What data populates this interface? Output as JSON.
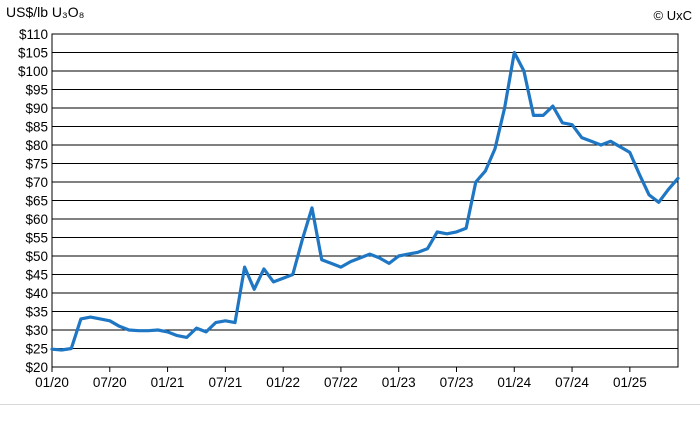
{
  "chart_data": {
    "type": "line",
    "ylabel": "US$/lb U₃O₈",
    "copyright": "© UxC",
    "ylim": [
      20,
      110
    ],
    "yticks": [
      20,
      25,
      30,
      35,
      40,
      45,
      50,
      55,
      60,
      65,
      70,
      75,
      80,
      85,
      90,
      95,
      100,
      105,
      110
    ],
    "ytick_labels": [
      "$20",
      "$25",
      "$30",
      "$35",
      "$40",
      "$45",
      "$50",
      "$55",
      "$60",
      "$65",
      "$70",
      "$75",
      "$80",
      "$85",
      "$90",
      "$95",
      "$100",
      "$105",
      "$110"
    ],
    "xlim": [
      "2020-01",
      "2025-06"
    ],
    "xticks": [
      "2020-01",
      "2020-07",
      "2021-01",
      "2021-07",
      "2022-01",
      "2022-07",
      "2023-01",
      "2023-07",
      "2024-01",
      "2024-07",
      "2025-01"
    ],
    "xtick_labels": [
      "01/20",
      "07/20",
      "01/21",
      "07/21",
      "01/22",
      "07/22",
      "01/23",
      "07/23",
      "01/24",
      "07/24",
      "01/25"
    ],
    "grid": true,
    "line_color": "#1f77c4",
    "series": [
      {
        "x": [
          "2020-01",
          "2020-02",
          "2020-03",
          "2020-04",
          "2020-05",
          "2020-06",
          "2020-07",
          "2020-08",
          "2020-09",
          "2020-10",
          "2020-11",
          "2020-12",
          "2021-01",
          "2021-02",
          "2021-03",
          "2021-04",
          "2021-05",
          "2021-06",
          "2021-07",
          "2021-08",
          "2021-09",
          "2021-10",
          "2021-11",
          "2021-12",
          "2022-01",
          "2022-02",
          "2022-03",
          "2022-04",
          "2022-05",
          "2022-06",
          "2022-07",
          "2022-08",
          "2022-09",
          "2022-10",
          "2022-11",
          "2022-12",
          "2023-01",
          "2023-02",
          "2023-03",
          "2023-04",
          "2023-05",
          "2023-06",
          "2023-07",
          "2023-08",
          "2023-09",
          "2023-10",
          "2023-11",
          "2023-12",
          "2024-01",
          "2024-02",
          "2024-03",
          "2024-04",
          "2024-05",
          "2024-06",
          "2024-07",
          "2024-08",
          "2024-09",
          "2024-10",
          "2024-11",
          "2024-12",
          "2025-01",
          "2025-02",
          "2025-03",
          "2025-04",
          "2025-05",
          "2025-06"
        ],
        "values": [
          24.8,
          24.6,
          25.0,
          33.0,
          33.5,
          33.0,
          32.5,
          31.0,
          30.0,
          29.8,
          29.8,
          30.0,
          29.5,
          28.5,
          28.0,
          30.5,
          29.5,
          32.0,
          32.5,
          32.0,
          47.0,
          41.0,
          46.5,
          43.0,
          44.0,
          45.0,
          54.5,
          63.0,
          49.0,
          48.0,
          47.0,
          48.5,
          49.5,
          50.5,
          49.5,
          48.0,
          50.0,
          50.5,
          51.0,
          52.0,
          56.5,
          56.0,
          56.5,
          57.5,
          70.0,
          73.0,
          79.0,
          90.0,
          105.0,
          100.0,
          88.0,
          88.0,
          90.5,
          86.0,
          85.5,
          82.0,
          81.0,
          80.0,
          81.0,
          79.5,
          78.0,
          72.0,
          66.5,
          64.5,
          68.0,
          71.0
        ]
      }
    ]
  }
}
